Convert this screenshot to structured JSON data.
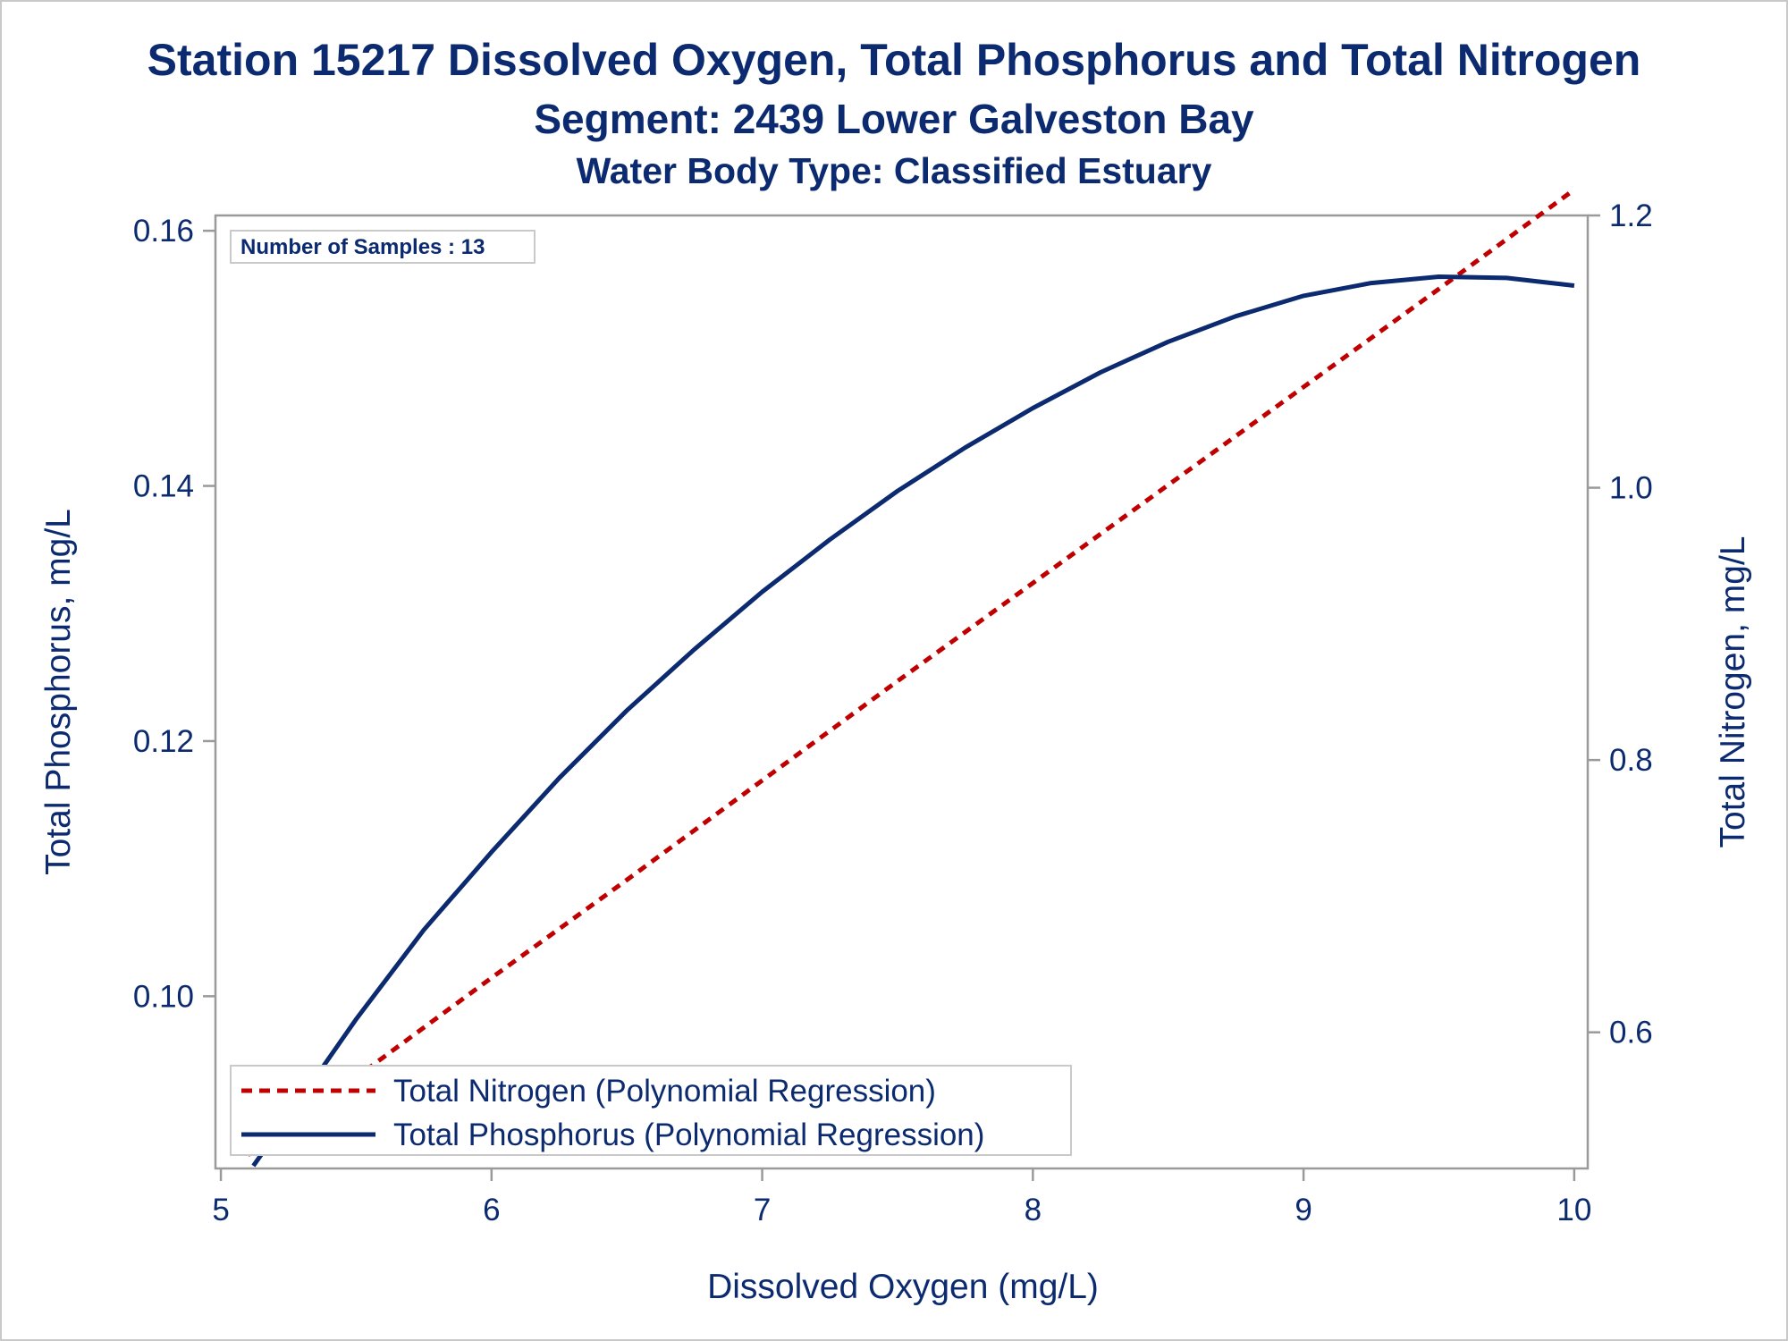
{
  "titles": {
    "line1": "Station 15217  Dissolved Oxygen, Total Phosphorus and Total Nitrogen",
    "line2": "Segment: 2439  Lower Galveston Bay",
    "line3": "Water Body Type: Classified Estuary"
  },
  "inset_label": "Number of Samples : 13",
  "colors": {
    "text": "#0b2a6f",
    "phosphorus": "#0b2a6f",
    "nitrogen": "#c00000",
    "axis": "#9a9a9a"
  },
  "chart_data": {
    "type": "line",
    "xlabel": "Dissolved Oxygen (mg/L)",
    "ylabel_left": "Total Phosphorus, mg/L",
    "ylabel_right": "Total Nitrogen, mg/L",
    "xlim": [
      4.98,
      10.05
    ],
    "ylim_left": [
      0.0865,
      0.1612
    ],
    "ylim_right": [
      0.5,
      1.2
    ],
    "x_ticks": [
      "5",
      "6",
      "7",
      "8",
      "9",
      "10"
    ],
    "y_left_ticks": [
      "0.10",
      "0.12",
      "0.14",
      "0.16"
    ],
    "y_right_ticks": [
      "0.6",
      "0.8",
      "1.0",
      "1.2"
    ],
    "grid": false,
    "legend_position": "bottom-left",
    "series": [
      {
        "name": "Total Nitrogen (Polynomial Regression)",
        "axis": "right",
        "style": "dashed",
        "x": [
          5.1,
          5.5,
          6.0,
          6.5,
          7.0,
          7.5,
          8.0,
          8.5,
          9.0,
          9.5,
          10.0
        ],
        "y": [
          0.51,
          0.567,
          0.64,
          0.712,
          0.785,
          0.858,
          0.93,
          1.002,
          1.074,
          1.146,
          1.219
        ]
      },
      {
        "name": "Total Phosphorus (Polynomial Regression)",
        "axis": "left",
        "style": "solid",
        "x": [
          5.12,
          5.25,
          5.5,
          5.75,
          6.0,
          6.25,
          6.5,
          6.75,
          7.0,
          7.25,
          7.5,
          7.75,
          8.0,
          8.25,
          8.5,
          8.75,
          9.0,
          9.25,
          9.5,
          9.75,
          10.0
        ],
        "y": [
          0.0867,
          0.0906,
          0.0982,
          0.1052,
          0.1113,
          0.1171,
          0.1224,
          0.1272,
          0.1317,
          0.1358,
          0.1396,
          0.143,
          0.1461,
          0.1489,
          0.1513,
          0.1533,
          0.1549,
          0.1559,
          0.1564,
          0.1563,
          0.1557
        ]
      }
    ]
  }
}
